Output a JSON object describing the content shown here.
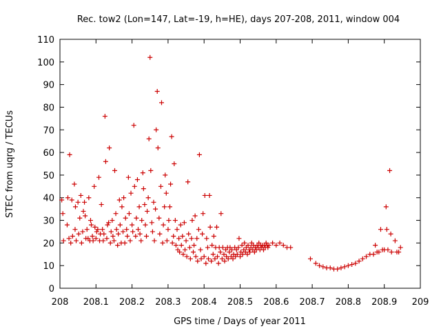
{
  "chart_data": {
    "type": "scatter",
    "title": "Rec. tow2 (Lon=147, Lat=-19, h=HE), days 207-208, 2011, window 004",
    "xlabel": "GPS time / Days of year 2011",
    "ylabel": "STEC from uqrg / TECUs",
    "xlim": [
      208,
      209
    ],
    "ylim": [
      0,
      110
    ],
    "xticks": [
      208,
      208.1,
      208.2,
      208.3,
      208.4,
      208.5,
      208.6,
      208.7,
      208.8,
      208.9,
      209
    ],
    "xtick_labels": [
      "208",
      "208.1",
      "208.2",
      "208.3",
      "208.4",
      "208.5",
      "208.6",
      "208.7",
      "208.8",
      "208.9",
      "209"
    ],
    "yticks": [
      0,
      10,
      20,
      30,
      40,
      50,
      60,
      70,
      80,
      90,
      100,
      110
    ],
    "ytick_labels": [
      "0",
      "10",
      "20",
      "30",
      "40",
      "50",
      "60",
      "70",
      "80",
      "90",
      "100",
      "110"
    ],
    "grid": false,
    "marker": "+",
    "color": "#cc0000",
    "series": [
      {
        "name": "STEC",
        "points": [
          [
            208.005,
            39
          ],
          [
            208.008,
            33
          ],
          [
            208.01,
            21
          ],
          [
            208.02,
            28
          ],
          [
            208.022,
            40
          ],
          [
            208.025,
            22
          ],
          [
            208.027,
            59
          ],
          [
            208.03,
            20
          ],
          [
            208.033,
            39
          ],
          [
            208.035,
            23
          ],
          [
            208.04,
            46
          ],
          [
            208.042,
            26
          ],
          [
            208.043,
            36
          ],
          [
            208.045,
            21
          ],
          [
            208.05,
            38
          ],
          [
            208.052,
            24
          ],
          [
            208.055,
            31
          ],
          [
            208.058,
            41
          ],
          [
            208.06,
            20
          ],
          [
            208.063,
            25
          ],
          [
            208.065,
            34
          ],
          [
            208.068,
            38
          ],
          [
            208.07,
            32
          ],
          [
            208.072,
            22
          ],
          [
            208.075,
            26
          ],
          [
            208.078,
            22
          ],
          [
            208.08,
            40
          ],
          [
            208.083,
            21
          ],
          [
            208.085,
            30
          ],
          [
            208.087,
            28
          ],
          [
            208.09,
            23
          ],
          [
            208.092,
            21
          ],
          [
            208.095,
            45
          ],
          [
            208.097,
            27
          ],
          [
            208.1,
            22
          ],
          [
            208.102,
            25
          ],
          [
            208.105,
            26
          ],
          [
            208.108,
            49
          ],
          [
            208.11,
            21
          ],
          [
            208.112,
            24
          ],
          [
            208.115,
            37
          ],
          [
            208.118,
            26
          ],
          [
            208.12,
            21
          ],
          [
            208.122,
            24
          ],
          [
            208.125,
            76
          ],
          [
            208.127,
            56
          ],
          [
            208.13,
            22
          ],
          [
            208.132,
            28
          ],
          [
            208.135,
            29
          ],
          [
            208.137,
            62
          ],
          [
            208.14,
            20
          ],
          [
            208.142,
            25
          ],
          [
            208.145,
            30
          ],
          [
            208.147,
            23
          ],
          [
            208.15,
            21
          ],
          [
            208.152,
            52
          ],
          [
            208.155,
            33
          ],
          [
            208.157,
            26
          ],
          [
            208.16,
            19
          ],
          [
            208.162,
            24
          ],
          [
            208.165,
            39
          ],
          [
            208.167,
            28
          ],
          [
            208.17,
            20
          ],
          [
            208.172,
            36
          ],
          [
            208.175,
            25
          ],
          [
            208.177,
            40
          ],
          [
            208.18,
            20
          ],
          [
            208.182,
            31
          ],
          [
            208.185,
            26
          ],
          [
            208.187,
            23
          ],
          [
            208.19,
            49
          ],
          [
            208.192,
            33
          ],
          [
            208.195,
            21
          ],
          [
            208.197,
            42
          ],
          [
            208.2,
            28
          ],
          [
            208.202,
            25
          ],
          [
            208.205,
            72
          ],
          [
            208.207,
            45
          ],
          [
            208.21,
            23
          ],
          [
            208.212,
            31
          ],
          [
            208.215,
            48
          ],
          [
            208.217,
            26
          ],
          [
            208.22,
            36
          ],
          [
            208.222,
            24
          ],
          [
            208.225,
            21
          ],
          [
            208.227,
            30
          ],
          [
            208.23,
            51
          ],
          [
            208.232,
            44
          ],
          [
            208.235,
            37
          ],
          [
            208.237,
            28
          ],
          [
            208.24,
            23
          ],
          [
            208.242,
            34
          ],
          [
            208.245,
            40
          ],
          [
            208.247,
            66
          ],
          [
            208.25,
            102
          ],
          [
            208.252,
            52
          ],
          [
            208.255,
            29
          ],
          [
            208.257,
            25
          ],
          [
            208.26,
            38
          ],
          [
            208.262,
            21
          ],
          [
            208.265,
            35
          ],
          [
            208.267,
            70
          ],
          [
            208.27,
            87
          ],
          [
            208.272,
            62
          ],
          [
            208.275,
            31
          ],
          [
            208.277,
            24
          ],
          [
            208.28,
            45
          ],
          [
            208.282,
            82
          ],
          [
            208.285,
            20
          ],
          [
            208.287,
            28
          ],
          [
            208.29,
            36
          ],
          [
            208.292,
            50
          ],
          [
            208.295,
            42
          ],
          [
            208.297,
            21
          ],
          [
            208.3,
            26
          ],
          [
            208.302,
            30
          ],
          [
            208.305,
            36
          ],
          [
            208.307,
            46
          ],
          [
            208.31,
            67
          ],
          [
            208.312,
            20
          ],
          [
            208.315,
            23
          ],
          [
            208.317,
            55
          ],
          [
            208.32,
            30
          ],
          [
            208.322,
            19
          ],
          [
            208.325,
            26
          ],
          [
            208.327,
            17
          ],
          [
            208.33,
            22
          ],
          [
            208.332,
            16
          ],
          [
            208.335,
            28
          ],
          [
            208.337,
            19
          ],
          [
            208.34,
            23
          ],
          [
            208.342,
            15
          ],
          [
            208.345,
            29
          ],
          [
            208.347,
            17
          ],
          [
            208.35,
            21
          ],
          [
            208.352,
            14
          ],
          [
            208.355,
            47
          ],
          [
            208.357,
            24
          ],
          [
            208.36,
            18
          ],
          [
            208.362,
            13
          ],
          [
            208.365,
            22
          ],
          [
            208.367,
            30
          ],
          [
            208.37,
            16
          ],
          [
            208.372,
            19
          ],
          [
            208.375,
            32
          ],
          [
            208.377,
            14
          ],
          [
            208.38,
            22
          ],
          [
            208.382,
            12
          ],
          [
            208.385,
            26
          ],
          [
            208.387,
            59
          ],
          [
            208.39,
            17
          ],
          [
            208.392,
            13
          ],
          [
            208.395,
            24
          ],
          [
            208.397,
            33
          ],
          [
            208.4,
            14
          ],
          [
            208.402,
            41
          ],
          [
            208.405,
            11
          ],
          [
            208.407,
            22
          ],
          [
            208.41,
            18
          ],
          [
            208.412,
            13
          ],
          [
            208.415,
            41
          ],
          [
            208.417,
            27
          ],
          [
            208.42,
            12
          ],
          [
            208.422,
            19
          ],
          [
            208.425,
            15
          ],
          [
            208.427,
            23
          ],
          [
            208.43,
            13
          ],
          [
            208.432,
            18
          ],
          [
            208.435,
            27
          ],
          [
            208.437,
            14
          ],
          [
            208.44,
            11
          ],
          [
            208.442,
            18
          ],
          [
            208.445,
            16
          ],
          [
            208.447,
            33
          ],
          [
            208.45,
            13
          ],
          [
            208.452,
            18
          ],
          [
            208.455,
            15
          ],
          [
            208.457,
            12
          ],
          [
            208.46,
            17
          ],
          [
            208.462,
            14
          ],
          [
            208.465,
            18
          ],
          [
            208.467,
            13
          ],
          [
            208.47,
            16
          ],
          [
            208.472,
            18
          ],
          [
            208.475,
            14
          ],
          [
            208.477,
            17
          ],
          [
            208.48,
            13
          ],
          [
            208.482,
            15
          ],
          [
            208.485,
            18
          ],
          [
            208.487,
            14
          ],
          [
            208.49,
            17
          ],
          [
            208.492,
            15
          ],
          [
            208.495,
            18
          ],
          [
            208.497,
            22
          ],
          [
            208.5,
            14
          ],
          [
            208.502,
            16
          ],
          [
            208.505,
            19
          ],
          [
            208.507,
            15
          ],
          [
            208.51,
            17
          ],
          [
            208.512,
            20
          ],
          [
            208.515,
            16
          ],
          [
            208.517,
            18
          ],
          [
            208.52,
            15
          ],
          [
            208.522,
            19
          ],
          [
            208.525,
            17
          ],
          [
            208.527,
            16
          ],
          [
            208.53,
            18
          ],
          [
            208.532,
            20
          ],
          [
            208.535,
            17
          ],
          [
            208.537,
            19
          ],
          [
            208.54,
            16
          ],
          [
            208.542,
            18
          ],
          [
            208.545,
            17
          ],
          [
            208.547,
            19
          ],
          [
            208.55,
            18
          ],
          [
            208.552,
            20
          ],
          [
            208.555,
            17
          ],
          [
            208.557,
            19
          ],
          [
            208.56,
            18
          ],
          [
            208.562,
            19
          ],
          [
            208.565,
            17
          ],
          [
            208.567,
            19
          ],
          [
            208.57,
            18
          ],
          [
            208.572,
            20
          ],
          [
            208.575,
            19
          ],
          [
            208.577,
            18
          ],
          [
            208.58,
            19
          ],
          [
            208.59,
            20
          ],
          [
            208.6,
            19
          ],
          [
            208.61,
            20
          ],
          [
            208.62,
            19
          ],
          [
            208.63,
            18
          ],
          [
            208.64,
            18
          ],
          [
            208.695,
            13
          ],
          [
            208.71,
            11
          ],
          [
            208.72,
            10
          ],
          [
            208.73,
            9.5
          ],
          [
            208.74,
            9
          ],
          [
            208.75,
            9
          ],
          [
            208.76,
            8.5
          ],
          [
            208.77,
            8.5
          ],
          [
            208.78,
            9
          ],
          [
            208.79,
            9.5
          ],
          [
            208.8,
            10
          ],
          [
            208.81,
            10.5
          ],
          [
            208.82,
            11
          ],
          [
            208.83,
            12
          ],
          [
            208.84,
            13
          ],
          [
            208.85,
            14
          ],
          [
            208.86,
            15
          ],
          [
            208.87,
            15
          ],
          [
            208.875,
            19
          ],
          [
            208.88,
            16
          ],
          [
            208.885,
            16
          ],
          [
            208.89,
            26
          ],
          [
            208.895,
            17
          ],
          [
            208.9,
            17
          ],
          [
            208.905,
            36
          ],
          [
            208.907,
            26
          ],
          [
            208.91,
            17
          ],
          [
            208.915,
            52
          ],
          [
            208.918,
            24
          ],
          [
            208.92,
            16
          ],
          [
            208.93,
            21
          ],
          [
            208.935,
            16
          ],
          [
            208.94,
            16
          ],
          [
            208.945,
            18
          ]
        ]
      }
    ]
  }
}
